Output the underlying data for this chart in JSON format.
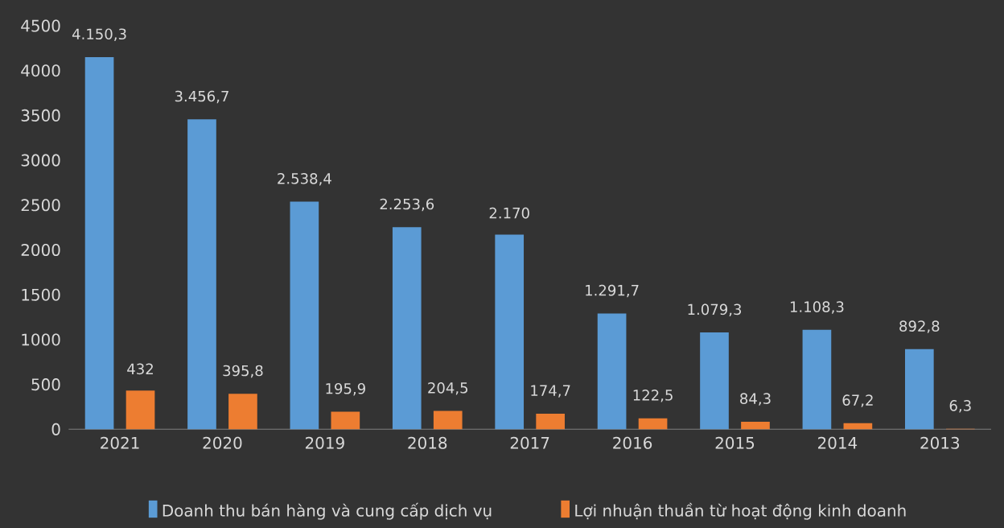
{
  "chart_data": {
    "type": "bar",
    "categories": [
      "2021",
      "2020",
      "2019",
      "2018",
      "2017",
      "2016",
      "2015",
      "2014",
      "2013"
    ],
    "series": [
      {
        "name": "Doanh thu bán hàng và cung cấp dịch vụ",
        "color": "#5b9bd5",
        "values": [
          4150.3,
          3456.7,
          2538.4,
          2253.6,
          2170,
          1291.7,
          1079.3,
          1108.3,
          892.8
        ],
        "value_labels": [
          "4.150,3",
          "3.456,7",
          "2.538,4",
          "2.253,6",
          "2.170",
          "1.291,7",
          "1.079,3",
          "1.108,3",
          "892,8"
        ]
      },
      {
        "name": "Lợi nhuận thuần từ hoạt động kinh doanh",
        "color": "#ed7d31",
        "values": [
          432,
          395.8,
          195.9,
          204.5,
          174.7,
          122.5,
          84.3,
          67.2,
          6.3
        ],
        "value_labels": [
          "432",
          "395,8",
          "195,9",
          "204,5",
          "174,7",
          "122,5",
          "84,3",
          "67,2",
          "6,3"
        ]
      }
    ],
    "ylim": [
      0,
      4500
    ],
    "yticks": [
      0,
      500,
      1000,
      1500,
      2000,
      2500,
      3000,
      3500,
      4000,
      4500
    ],
    "grid": false,
    "legend": "bottom"
  }
}
